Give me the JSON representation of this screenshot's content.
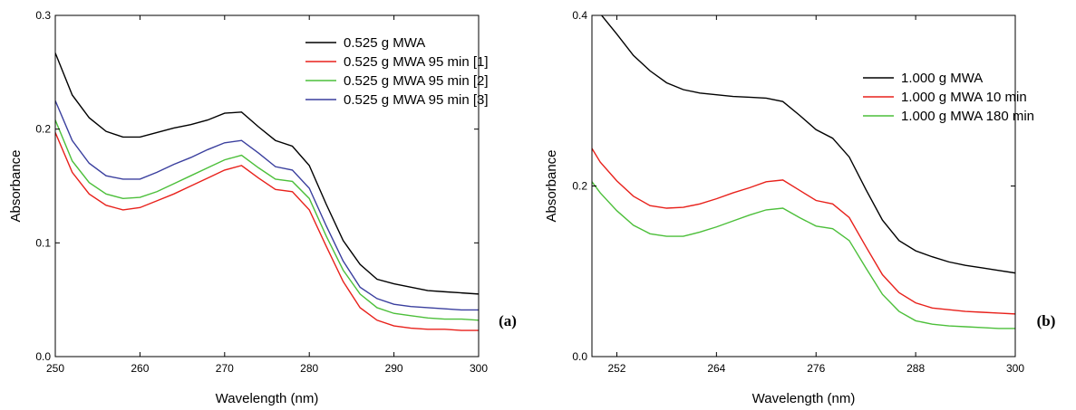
{
  "chart_data": [
    {
      "type": "line",
      "panel_label": "(a)",
      "xlabel": "Wavelength (nm)",
      "ylabel": "Absorbance",
      "xlim": [
        250,
        300
      ],
      "ylim": [
        0.0,
        0.3
      ],
      "xticks": [
        250,
        260,
        270,
        280,
        290,
        300
      ],
      "xtick_labels": [
        "250",
        "260",
        "270",
        "280",
        "290",
        "300"
      ],
      "yticks": [
        0.0,
        0.1,
        0.2,
        0.3
      ],
      "ytick_labels": [
        "0.0",
        "0.1",
        "0.2",
        "0.3"
      ],
      "legend_position": "top-right",
      "grid": false,
      "series": [
        {
          "name": "0.525 g MWA",
          "color": "#000000",
          "x": [
            250,
            252,
            254,
            256,
            258,
            260,
            262,
            264,
            266,
            268,
            270,
            272,
            274,
            276,
            278,
            280,
            282,
            284,
            286,
            288,
            290,
            292,
            294,
            296,
            298,
            300
          ],
          "y": [
            0.267,
            0.23,
            0.21,
            0.198,
            0.193,
            0.193,
            0.197,
            0.201,
            0.204,
            0.208,
            0.214,
            0.215,
            0.202,
            0.19,
            0.185,
            0.168,
            0.134,
            0.102,
            0.081,
            0.068,
            0.064,
            0.061,
            0.058,
            0.057,
            0.056,
            0.055
          ]
        },
        {
          "name": "0.525 g MWA 95 min [1]",
          "color": "#e8211b",
          "x": [
            250,
            252,
            254,
            256,
            258,
            260,
            262,
            264,
            266,
            268,
            270,
            272,
            274,
            276,
            278,
            280,
            282,
            284,
            286,
            288,
            290,
            292,
            294,
            296,
            298,
            300
          ],
          "y": [
            0.197,
            0.162,
            0.143,
            0.133,
            0.129,
            0.131,
            0.137,
            0.143,
            0.15,
            0.157,
            0.164,
            0.168,
            0.157,
            0.147,
            0.145,
            0.129,
            0.097,
            0.066,
            0.043,
            0.032,
            0.027,
            0.025,
            0.024,
            0.024,
            0.023,
            0.023
          ]
        },
        {
          "name": "0.525 g MWA 95 min [2]",
          "color": "#4cbf3a",
          "x": [
            250,
            252,
            254,
            256,
            258,
            260,
            262,
            264,
            266,
            268,
            270,
            272,
            274,
            276,
            278,
            280,
            282,
            284,
            286,
            288,
            290,
            292,
            294,
            296,
            298,
            300
          ],
          "y": [
            0.208,
            0.172,
            0.153,
            0.143,
            0.139,
            0.14,
            0.145,
            0.152,
            0.159,
            0.166,
            0.173,
            0.177,
            0.166,
            0.156,
            0.154,
            0.139,
            0.106,
            0.076,
            0.055,
            0.043,
            0.038,
            0.036,
            0.034,
            0.033,
            0.033,
            0.032
          ]
        },
        {
          "name": "0.525 g MWA 95 min [3]",
          "color": "#3a3f9e",
          "x": [
            250,
            252,
            254,
            256,
            258,
            260,
            262,
            264,
            266,
            268,
            270,
            272,
            274,
            276,
            278,
            280,
            282,
            284,
            286,
            288,
            290,
            292,
            294,
            296,
            298,
            300
          ],
          "y": [
            0.225,
            0.19,
            0.17,
            0.159,
            0.156,
            0.156,
            0.162,
            0.169,
            0.175,
            0.182,
            0.188,
            0.19,
            0.179,
            0.167,
            0.164,
            0.148,
            0.115,
            0.084,
            0.061,
            0.051,
            0.046,
            0.044,
            0.043,
            0.042,
            0.041,
            0.041
          ]
        }
      ]
    },
    {
      "type": "line",
      "panel_label": "(b)",
      "xlabel": "Wavelength (nm)",
      "ylabel": "Absorbance",
      "xlim": [
        249,
        300
      ],
      "ylim": [
        0.0,
        0.4
      ],
      "xticks": [
        252,
        264,
        276,
        288,
        300
      ],
      "xtick_labels": [
        "252",
        "264",
        "276",
        "288",
        "300"
      ],
      "yticks": [
        0.0,
        0.2,
        0.4
      ],
      "ytick_labels": [
        "0.0",
        "0.2",
        "0.4"
      ],
      "legend_position": "top-right",
      "grid": false,
      "series": [
        {
          "name": "1.000 g MWA",
          "color": "#000000",
          "x": [
            250,
            252,
            254,
            256,
            258,
            260,
            262,
            264,
            266,
            268,
            270,
            272,
            274,
            276,
            278,
            280,
            282,
            284,
            286,
            288,
            290,
            292,
            294,
            296,
            298,
            300
          ],
          "y": [
            0.402,
            0.378,
            0.353,
            0.335,
            0.321,
            0.313,
            0.309,
            0.307,
            0.305,
            0.304,
            0.303,
            0.299,
            0.283,
            0.266,
            0.256,
            0.234,
            0.196,
            0.16,
            0.136,
            0.124,
            0.117,
            0.111,
            0.107,
            0.104,
            0.101,
            0.098
          ]
        },
        {
          "name": "1.000 g MWA 10 min",
          "color": "#e8211b",
          "x": [
            249,
            250,
            252,
            254,
            256,
            258,
            260,
            262,
            264,
            266,
            268,
            270,
            272,
            274,
            276,
            278,
            280,
            282,
            284,
            286,
            288,
            290,
            292,
            294,
            296,
            298,
            300
          ],
          "y": [
            0.244,
            0.228,
            0.206,
            0.188,
            0.177,
            0.174,
            0.175,
            0.179,
            0.185,
            0.192,
            0.198,
            0.205,
            0.207,
            0.195,
            0.183,
            0.179,
            0.163,
            0.129,
            0.096,
            0.075,
            0.063,
            0.057,
            0.055,
            0.053,
            0.052,
            0.051,
            0.05
          ]
        },
        {
          "name": "1.000 g MWA 180 min",
          "color": "#4cbf3a",
          "x": [
            249,
            250,
            252,
            254,
            256,
            258,
            260,
            262,
            264,
            266,
            268,
            270,
            272,
            274,
            276,
            278,
            280,
            282,
            284,
            286,
            288,
            290,
            292,
            294,
            296,
            298,
            300
          ],
          "y": [
            0.205,
            0.192,
            0.171,
            0.154,
            0.144,
            0.141,
            0.141,
            0.146,
            0.152,
            0.159,
            0.166,
            0.172,
            0.174,
            0.163,
            0.153,
            0.15,
            0.136,
            0.104,
            0.073,
            0.053,
            0.042,
            0.038,
            0.036,
            0.035,
            0.034,
            0.033,
            0.033
          ]
        }
      ]
    }
  ]
}
